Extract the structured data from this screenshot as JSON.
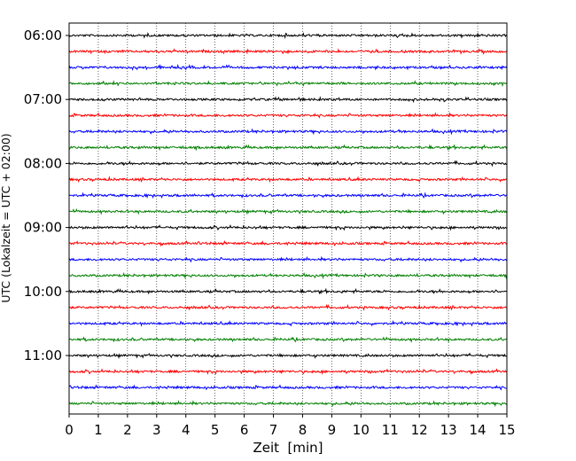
{
  "chart_data": {
    "type": "line",
    "title": "",
    "xlabel": "Zeit  [min]",
    "ylabel": "UTC (Lokalzeit = UTC + 02:00)",
    "xlim": [
      0,
      15
    ],
    "x_ticks": [
      0,
      1,
      2,
      3,
      4,
      5,
      6,
      7,
      8,
      9,
      10,
      11,
      12,
      13,
      14,
      15
    ],
    "y_tick_labels": [
      "06:00",
      "07:00",
      "08:00",
      "09:00",
      "10:00",
      "11:00"
    ],
    "grid": "vertical dotted",
    "legend": "none",
    "trace_colors": [
      "#000000",
      "#ff0000",
      "#0000ff",
      "#008000"
    ],
    "series": [
      {
        "start": "06:00",
        "color": "#000000"
      },
      {
        "start": "06:15",
        "color": "#ff0000"
      },
      {
        "start": "06:30",
        "color": "#0000ff"
      },
      {
        "start": "06:45",
        "color": "#008000"
      },
      {
        "start": "07:00",
        "color": "#000000"
      },
      {
        "start": "07:15",
        "color": "#ff0000"
      },
      {
        "start": "07:30",
        "color": "#0000ff"
      },
      {
        "start": "07:45",
        "color": "#008000"
      },
      {
        "start": "08:00",
        "color": "#000000"
      },
      {
        "start": "08:15",
        "color": "#ff0000"
      },
      {
        "start": "08:30",
        "color": "#0000ff"
      },
      {
        "start": "08:45",
        "color": "#008000"
      },
      {
        "start": "09:00",
        "color": "#000000"
      },
      {
        "start": "09:15",
        "color": "#ff0000"
      },
      {
        "start": "09:30",
        "color": "#0000ff"
      },
      {
        "start": "09:45",
        "color": "#008000"
      },
      {
        "start": "10:00",
        "color": "#000000"
      },
      {
        "start": "10:15",
        "color": "#ff0000"
      },
      {
        "start": "10:30",
        "color": "#0000ff"
      },
      {
        "start": "10:45",
        "color": "#008000"
      },
      {
        "start": "11:00",
        "color": "#000000"
      },
      {
        "start": "11:15",
        "color": "#ff0000"
      },
      {
        "start": "11:30",
        "color": "#0000ff"
      },
      {
        "start": "11:45",
        "color": "#008000"
      }
    ]
  }
}
